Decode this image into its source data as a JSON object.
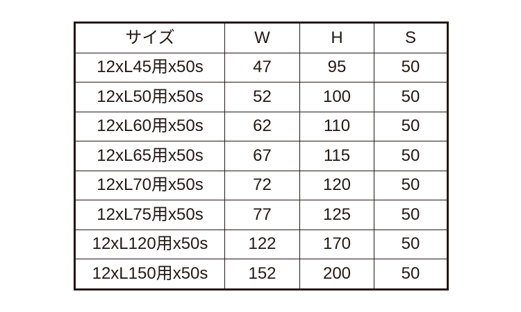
{
  "headers": [
    "サイズ",
    "W",
    "H",
    "S"
  ],
  "rows": [
    [
      "12xL45用x50s",
      "47",
      "95",
      "50"
    ],
    [
      "12xL50用x50s",
      "52",
      "100",
      "50"
    ],
    [
      "12xL60用x50s",
      "62",
      "110",
      "50"
    ],
    [
      "12xL65用x50s",
      "67",
      "115",
      "50"
    ],
    [
      "12xL70用x50s",
      "72",
      "120",
      "50"
    ],
    [
      "12xL75用x50s",
      "77",
      "125",
      "50"
    ],
    [
      "12xL120用x50s",
      "122",
      "170",
      "50"
    ],
    [
      "12xL150用x50s",
      "152",
      "200",
      "50"
    ]
  ],
  "colors": {
    "text": "#231815",
    "border": "#231815",
    "background": "#ffffff"
  }
}
